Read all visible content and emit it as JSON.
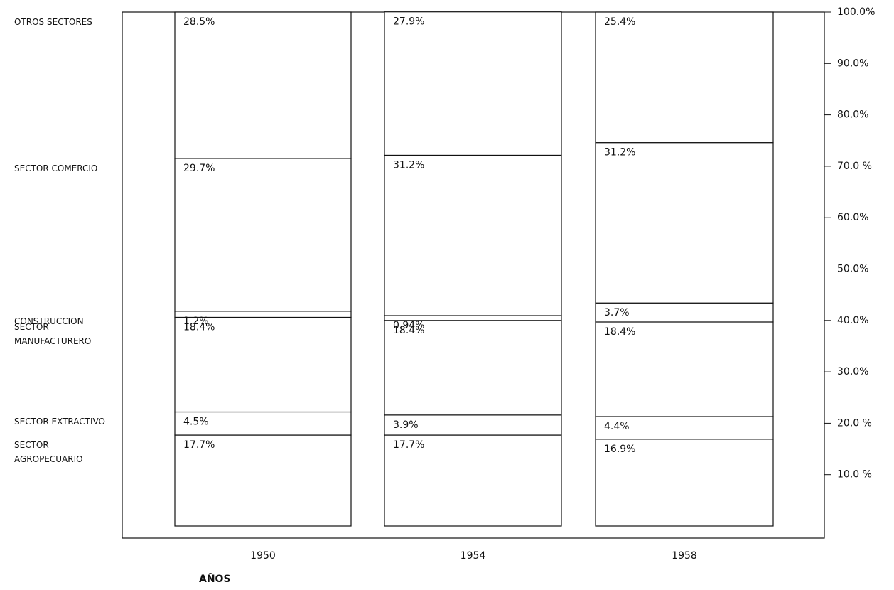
{
  "chart_data": {
    "type": "stacked_bar",
    "categories": [
      "1950",
      "1954",
      "1958"
    ],
    "x_label": "AÑOS",
    "series": [
      {
        "name": "SECTOR AGROPECUARIO",
        "color": "#ffffff",
        "values": [
          17.7,
          17.7,
          16.9
        ],
        "value_labels": [
          "17.7%",
          "17.7%",
          "16.9%"
        ]
      },
      {
        "name": "SECTOR EXTRACTIVO",
        "color": "#ffffff",
        "values": [
          4.5,
          3.9,
          4.4
        ],
        "value_labels": [
          "4.5%",
          "3.9%",
          "4.4%"
        ]
      },
      {
        "name": "SECTOR MANUFACTURERO",
        "color": "#ffffff",
        "values": [
          18.4,
          18.4,
          18.4
        ],
        "value_labels": [
          "18.4%",
          "18.4%",
          "18.4%"
        ]
      },
      {
        "name": "CONSTRUCCION",
        "color": "#ffffff",
        "values": [
          1.2,
          0.94,
          3.7
        ],
        "value_labels": [
          "1.2%",
          "0.94%",
          "3.7%"
        ]
      },
      {
        "name": "SECTOR COMERCIO",
        "color": "#ffffff",
        "values": [
          29.7,
          31.2,
          31.2
        ],
        "value_labels": [
          "29.7%",
          "31.2%",
          "31.2%"
        ]
      },
      {
        "name": "OTROS SECTORES",
        "color": "#ffffff",
        "values": [
          28.5,
          27.9,
          25.4
        ],
        "value_labels": [
          "28.5%",
          "27.9%",
          "25.4%"
        ]
      }
    ],
    "ylim": [
      0,
      100
    ],
    "yticks": [
      {
        "value": 10,
        "label": "10.0 %"
      },
      {
        "value": 20,
        "label": "20.0 %"
      },
      {
        "value": 30,
        "label": "30.0%"
      },
      {
        "value": 40,
        "label": "40.0%"
      },
      {
        "value": 50,
        "label": "50.0%"
      },
      {
        "value": 60,
        "label": "60.0%"
      },
      {
        "value": 70,
        "label": "70.0 %"
      },
      {
        "value": 80,
        "label": "80.0%"
      },
      {
        "value": 90,
        "label": "90.0%"
      },
      {
        "value": 100,
        "label": "100.0%"
      }
    ]
  }
}
